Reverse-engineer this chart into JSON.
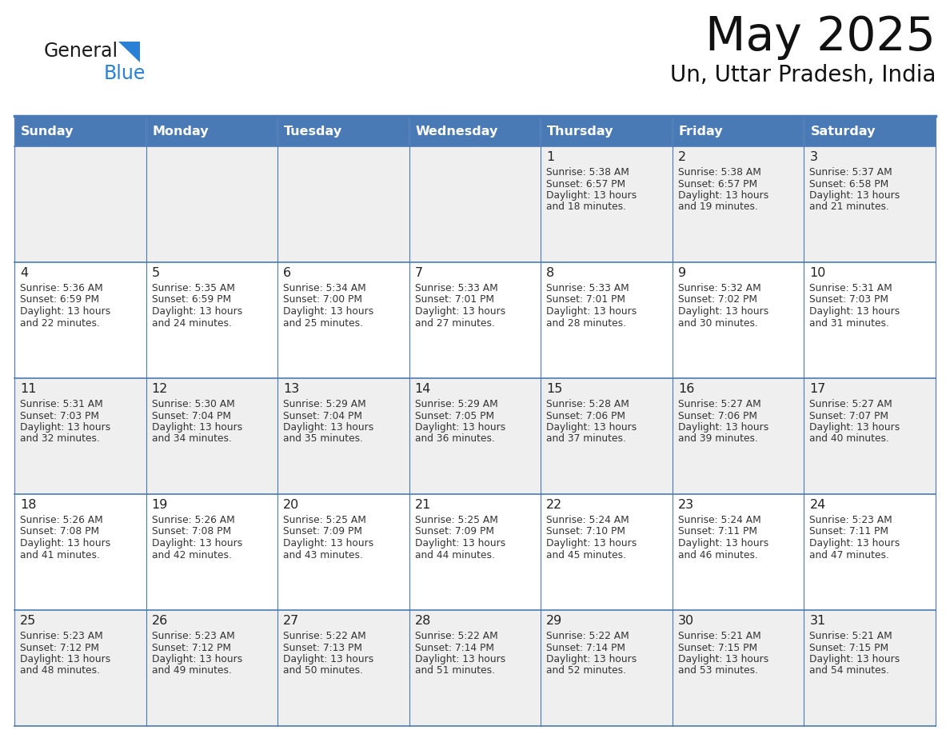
{
  "title": "May 2025",
  "subtitle": "Un, Uttar Pradesh, India",
  "days_of_week": [
    "Sunday",
    "Monday",
    "Tuesday",
    "Wednesday",
    "Thursday",
    "Friday",
    "Saturday"
  ],
  "header_bg": "#4a7ab5",
  "header_text": "#FFFFFF",
  "cell_bg_odd": "#EFEFEF",
  "cell_bg_even": "#FFFFFF",
  "cell_border": "#4a7ab5",
  "title_color": "#111111",
  "subtitle_color": "#111111",
  "cell_text_color": "#333333",
  "day_number_color": "#222222",
  "logo_general_color": "#1a1a1a",
  "logo_blue_color": "#2980d4",
  "weeks": [
    {
      "days": [
        {
          "day": null,
          "sunrise": null,
          "sunset": null,
          "daylight_hours": null,
          "daylight_minutes": null
        },
        {
          "day": null,
          "sunrise": null,
          "sunset": null,
          "daylight_hours": null,
          "daylight_minutes": null
        },
        {
          "day": null,
          "sunrise": null,
          "sunset": null,
          "daylight_hours": null,
          "daylight_minutes": null
        },
        {
          "day": null,
          "sunrise": null,
          "sunset": null,
          "daylight_hours": null,
          "daylight_minutes": null
        },
        {
          "day": 1,
          "sunrise": "5:38 AM",
          "sunset": "6:57 PM",
          "daylight_hours": 13,
          "daylight_minutes": 18
        },
        {
          "day": 2,
          "sunrise": "5:38 AM",
          "sunset": "6:57 PM",
          "daylight_hours": 13,
          "daylight_minutes": 19
        },
        {
          "day": 3,
          "sunrise": "5:37 AM",
          "sunset": "6:58 PM",
          "daylight_hours": 13,
          "daylight_minutes": 21
        }
      ]
    },
    {
      "days": [
        {
          "day": 4,
          "sunrise": "5:36 AM",
          "sunset": "6:59 PM",
          "daylight_hours": 13,
          "daylight_minutes": 22
        },
        {
          "day": 5,
          "sunrise": "5:35 AM",
          "sunset": "6:59 PM",
          "daylight_hours": 13,
          "daylight_minutes": 24
        },
        {
          "day": 6,
          "sunrise": "5:34 AM",
          "sunset": "7:00 PM",
          "daylight_hours": 13,
          "daylight_minutes": 25
        },
        {
          "day": 7,
          "sunrise": "5:33 AM",
          "sunset": "7:01 PM",
          "daylight_hours": 13,
          "daylight_minutes": 27
        },
        {
          "day": 8,
          "sunrise": "5:33 AM",
          "sunset": "7:01 PM",
          "daylight_hours": 13,
          "daylight_minutes": 28
        },
        {
          "day": 9,
          "sunrise": "5:32 AM",
          "sunset": "7:02 PM",
          "daylight_hours": 13,
          "daylight_minutes": 30
        },
        {
          "day": 10,
          "sunrise": "5:31 AM",
          "sunset": "7:03 PM",
          "daylight_hours": 13,
          "daylight_minutes": 31
        }
      ]
    },
    {
      "days": [
        {
          "day": 11,
          "sunrise": "5:31 AM",
          "sunset": "7:03 PM",
          "daylight_hours": 13,
          "daylight_minutes": 32
        },
        {
          "day": 12,
          "sunrise": "5:30 AM",
          "sunset": "7:04 PM",
          "daylight_hours": 13,
          "daylight_minutes": 34
        },
        {
          "day": 13,
          "sunrise": "5:29 AM",
          "sunset": "7:04 PM",
          "daylight_hours": 13,
          "daylight_minutes": 35
        },
        {
          "day": 14,
          "sunrise": "5:29 AM",
          "sunset": "7:05 PM",
          "daylight_hours": 13,
          "daylight_minutes": 36
        },
        {
          "day": 15,
          "sunrise": "5:28 AM",
          "sunset": "7:06 PM",
          "daylight_hours": 13,
          "daylight_minutes": 37
        },
        {
          "day": 16,
          "sunrise": "5:27 AM",
          "sunset": "7:06 PM",
          "daylight_hours": 13,
          "daylight_minutes": 39
        },
        {
          "day": 17,
          "sunrise": "5:27 AM",
          "sunset": "7:07 PM",
          "daylight_hours": 13,
          "daylight_minutes": 40
        }
      ]
    },
    {
      "days": [
        {
          "day": 18,
          "sunrise": "5:26 AM",
          "sunset": "7:08 PM",
          "daylight_hours": 13,
          "daylight_minutes": 41
        },
        {
          "day": 19,
          "sunrise": "5:26 AM",
          "sunset": "7:08 PM",
          "daylight_hours": 13,
          "daylight_minutes": 42
        },
        {
          "day": 20,
          "sunrise": "5:25 AM",
          "sunset": "7:09 PM",
          "daylight_hours": 13,
          "daylight_minutes": 43
        },
        {
          "day": 21,
          "sunrise": "5:25 AM",
          "sunset": "7:09 PM",
          "daylight_hours": 13,
          "daylight_minutes": 44
        },
        {
          "day": 22,
          "sunrise": "5:24 AM",
          "sunset": "7:10 PM",
          "daylight_hours": 13,
          "daylight_minutes": 45
        },
        {
          "day": 23,
          "sunrise": "5:24 AM",
          "sunset": "7:11 PM",
          "daylight_hours": 13,
          "daylight_minutes": 46
        },
        {
          "day": 24,
          "sunrise": "5:23 AM",
          "sunset": "7:11 PM",
          "daylight_hours": 13,
          "daylight_minutes": 47
        }
      ]
    },
    {
      "days": [
        {
          "day": 25,
          "sunrise": "5:23 AM",
          "sunset": "7:12 PM",
          "daylight_hours": 13,
          "daylight_minutes": 48
        },
        {
          "day": 26,
          "sunrise": "5:23 AM",
          "sunset": "7:12 PM",
          "daylight_hours": 13,
          "daylight_minutes": 49
        },
        {
          "day": 27,
          "sunrise": "5:22 AM",
          "sunset": "7:13 PM",
          "daylight_hours": 13,
          "daylight_minutes": 50
        },
        {
          "day": 28,
          "sunrise": "5:22 AM",
          "sunset": "7:14 PM",
          "daylight_hours": 13,
          "daylight_minutes": 51
        },
        {
          "day": 29,
          "sunrise": "5:22 AM",
          "sunset": "7:14 PM",
          "daylight_hours": 13,
          "daylight_minutes": 52
        },
        {
          "day": 30,
          "sunrise": "5:21 AM",
          "sunset": "7:15 PM",
          "daylight_hours": 13,
          "daylight_minutes": 53
        },
        {
          "day": 31,
          "sunrise": "5:21 AM",
          "sunset": "7:15 PM",
          "daylight_hours": 13,
          "daylight_minutes": 54
        }
      ]
    }
  ]
}
